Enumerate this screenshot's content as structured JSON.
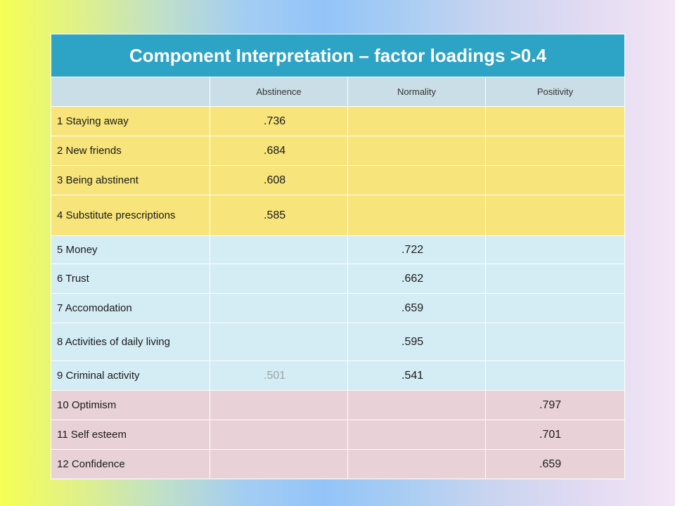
{
  "title": "Component Interpretation – factor loadings >0.4",
  "columns": [
    "",
    "Abstinence",
    "Normality",
    "Positivity"
  ],
  "rows": [
    {
      "label": "1 Staying away",
      "abstinence": ".736",
      "normality": "",
      "positivity": ""
    },
    {
      "label": "2 New friends",
      "abstinence": ".684",
      "normality": "",
      "positivity": ""
    },
    {
      "label": "3 Being abstinent",
      "abstinence": ".608",
      "normality": "",
      "positivity": ""
    },
    {
      "label": "4 Substitute prescriptions",
      "abstinence": ".585",
      "normality": "",
      "positivity": ""
    },
    {
      "label": "5 Money",
      "abstinence": "",
      "normality": ".722",
      "positivity": ""
    },
    {
      "label": "6 Trust",
      "abstinence": "",
      "normality": ".662",
      "positivity": ""
    },
    {
      "label": "7 Accomodation",
      "abstinence": "",
      "normality": ".659",
      "positivity": ""
    },
    {
      "label": "8 Activities of daily living",
      "abstinence": "",
      "normality": ".595",
      "positivity": ""
    },
    {
      "label": "9 Criminal activity",
      "abstinence": ".501",
      "normality": ".541",
      "positivity": ""
    },
    {
      "label": "10 Optimism",
      "abstinence": "",
      "normality": "",
      "positivity": ".797"
    },
    {
      "label": "11 Self esteem",
      "abstinence": "",
      "normality": "",
      "positivity": ".701"
    },
    {
      "label": "12 Confidence",
      "abstinence": "",
      "normality": "",
      "positivity": ".659"
    }
  ],
  "colors": {
    "title_bg": "#2da3c5",
    "header_bg": "#c9dee7",
    "abstinence_group": "#f7e47a",
    "normality_group": "#d4ecf4",
    "positivity_group": "#e8d2d8",
    "faint_value": "#9aa5a8"
  }
}
